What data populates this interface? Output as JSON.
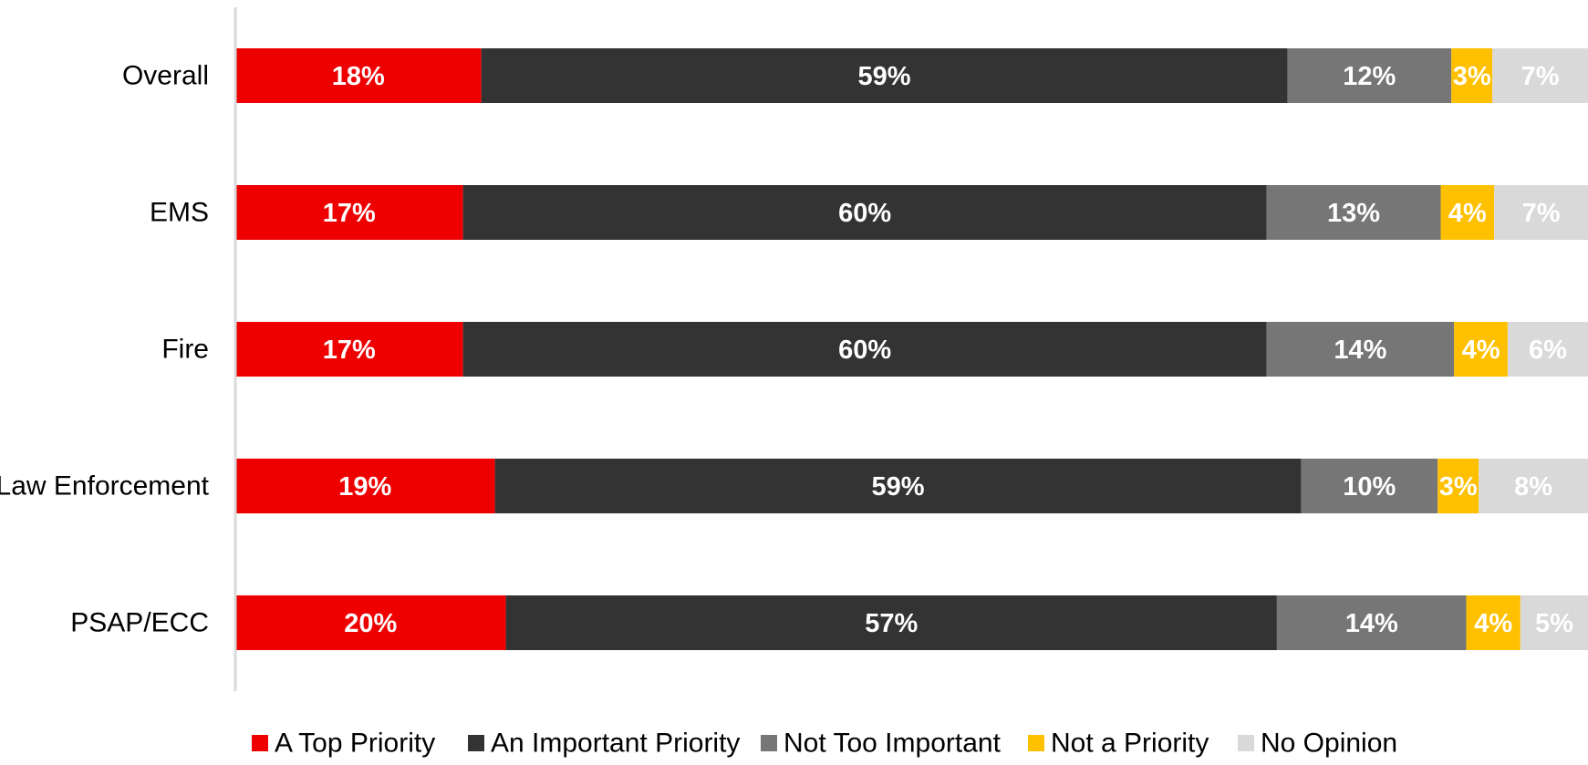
{
  "chart_data": {
    "type": "bar",
    "orientation": "horizontal",
    "stacked": true,
    "normalized": true,
    "categories": [
      "Overall",
      "EMS",
      "Fire",
      "Law Enforcement",
      "PSAP/ECC"
    ],
    "series": [
      {
        "name": "A Top Priority",
        "color": "#ee0000",
        "values": [
          18,
          17,
          17,
          19,
          20
        ],
        "labels": [
          "18%",
          "17%",
          "17%",
          "19%",
          "20%"
        ]
      },
      {
        "name": "An Important Priority",
        "color": "#333333",
        "values": [
          59,
          60,
          60,
          59,
          57
        ],
        "labels": [
          "59%",
          "60%",
          "60%",
          "59%",
          "57%"
        ]
      },
      {
        "name": "Not Too Important",
        "color": "#767676",
        "values": [
          12,
          13,
          14,
          10,
          14
        ],
        "labels": [
          "12%",
          "13%",
          "14%",
          "10%",
          "14%"
        ]
      },
      {
        "name": "Not a Priority",
        "color": "#ffc000",
        "values": [
          3,
          4,
          4,
          3,
          4
        ],
        "labels": [
          "3%",
          "4%",
          "4%",
          "3%",
          "4%"
        ]
      },
      {
        "name": "No Opinion",
        "color": "#d9d9d9",
        "values": [
          7,
          7,
          6,
          8,
          5
        ],
        "labels": [
          "7%",
          "7%",
          "6%",
          "8%",
          "5%"
        ]
      }
    ],
    "xlim": [
      0,
      100
    ],
    "grid": false,
    "legend_position": "bottom",
    "title": "",
    "xlabel": "",
    "ylabel": ""
  }
}
